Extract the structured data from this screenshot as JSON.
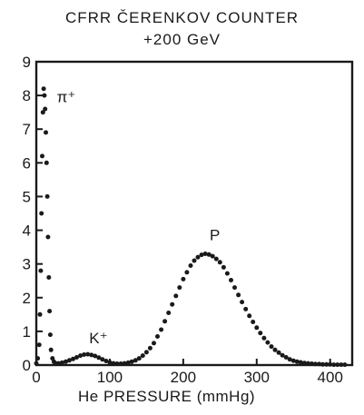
{
  "chart_data": {
    "type": "scatter",
    "title": "CFRR ČERENKOV COUNTER",
    "subtitle": "+200 GeV",
    "xlabel": "He PRESSURE (mmHg)",
    "ylabel": "",
    "xlim": [
      0,
      430
    ],
    "ylim": [
      0,
      9
    ],
    "xticks": [
      "0",
      "100",
      "200",
      "300",
      "400"
    ],
    "yticks": [
      "0",
      "1",
      "2",
      "3",
      "4",
      "5",
      "6",
      "7",
      "8",
      "9"
    ],
    "grid": false,
    "legend": "none",
    "annotations": [
      {
        "text": "π⁺",
        "x": 28,
        "y": 7.8
      },
      {
        "text": "K⁺",
        "x": 72,
        "y": 0.65
      },
      {
        "text": "P",
        "x": 236,
        "y": 3.7
      }
    ],
    "series": [
      {
        "x": [
          0,
          2,
          4,
          5,
          6,
          7,
          8,
          9,
          10,
          11,
          12,
          13,
          14,
          15,
          16,
          17,
          18,
          19,
          20,
          22,
          24,
          26,
          28,
          30,
          35,
          40,
          45,
          50,
          55,
          60,
          65,
          70,
          75,
          80,
          85,
          90,
          95,
          100,
          105,
          110,
          115,
          120,
          125,
          130,
          135,
          140,
          145,
          150,
          155,
          160,
          165,
          170,
          175,
          180,
          185,
          190,
          195,
          200,
          205,
          210,
          215,
          220,
          225,
          230,
          235,
          240,
          245,
          250,
          255,
          260,
          265,
          270,
          275,
          280,
          285,
          290,
          295,
          300,
          305,
          310,
          315,
          320,
          325,
          330,
          335,
          340,
          345,
          350,
          355,
          360,
          365,
          370,
          375,
          380,
          385,
          390,
          395,
          400,
          405,
          410,
          415,
          420
        ],
        "values": [
          0.05,
          0.2,
          0.6,
          1.5,
          2.8,
          4.5,
          6.2,
          7.5,
          8.2,
          8.0,
          7.6,
          6.9,
          6.0,
          5.0,
          3.8,
          2.6,
          1.6,
          0.9,
          0.45,
          0.2,
          0.1,
          0.05,
          0.04,
          0.05,
          0.07,
          0.1,
          0.14,
          0.18,
          0.23,
          0.28,
          0.31,
          0.32,
          0.3,
          0.27,
          0.22,
          0.17,
          0.12,
          0.08,
          0.05,
          0.04,
          0.04,
          0.05,
          0.07,
          0.1,
          0.14,
          0.2,
          0.28,
          0.38,
          0.5,
          0.65,
          0.85,
          1.05,
          1.3,
          1.55,
          1.8,
          2.05,
          2.3,
          2.55,
          2.75,
          2.95,
          3.1,
          3.2,
          3.27,
          3.3,
          3.28,
          3.23,
          3.15,
          3.05,
          2.9,
          2.72,
          2.52,
          2.3,
          2.08,
          1.87,
          1.66,
          1.46,
          1.28,
          1.11,
          0.95,
          0.8,
          0.67,
          0.55,
          0.45,
          0.37,
          0.29,
          0.23,
          0.17,
          0.13,
          0.1,
          0.08,
          0.06,
          0.05,
          0.04,
          0.03,
          0.03,
          0.02,
          0.02,
          0.02,
          0.01,
          0.01,
          0.01,
          0.01
        ],
        "color": "#1a1a1a"
      }
    ]
  }
}
